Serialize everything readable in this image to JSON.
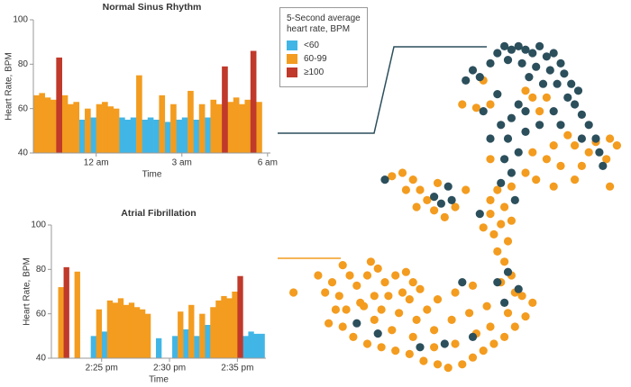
{
  "chart_data": [
    {
      "type": "bar",
      "title": "Normal Sinus Rhythm",
      "x_label": "Time",
      "y_label": "Heart Rate, BPM",
      "legend_title": "5-Second average heart rate, BPM",
      "x": [
        21.9,
        22.1,
        22.3,
        22.5,
        22.7,
        22.9,
        23.1,
        23.3,
        23.5,
        23.7,
        23.9,
        24.1,
        24.3,
        24.5,
        24.7,
        24.9,
        25.1,
        25.3,
        25.5,
        25.7,
        25.9,
        26.1,
        26.3,
        26.5,
        26.7,
        26.9,
        27.1,
        27.3,
        27.5,
        27.7,
        27.9,
        28.1,
        28.3,
        28.5,
        28.7,
        28.9,
        29.1,
        29.3,
        29.5,
        29.7
      ],
      "bar_width": 0.2,
      "series": [
        {
          "name": "<60",
          "color": "#41b6e6",
          "values": [
            null,
            null,
            null,
            null,
            null,
            null,
            null,
            null,
            55,
            null,
            56,
            null,
            null,
            null,
            null,
            56,
            55,
            56,
            null,
            55,
            56,
            55,
            null,
            54,
            null,
            55,
            56,
            null,
            55,
            null,
            56,
            null,
            null,
            null,
            null,
            null,
            null,
            null,
            null,
            null
          ]
        },
        {
          "name": "60-99",
          "color": "#f39c1f",
          "values": [
            66,
            67,
            65,
            64,
            null,
            66,
            62,
            63,
            null,
            60,
            null,
            62,
            63,
            61,
            60,
            null,
            null,
            null,
            75,
            null,
            null,
            null,
            66,
            null,
            62,
            null,
            null,
            68,
            null,
            62,
            null,
            64,
            62,
            null,
            63,
            65,
            62,
            64,
            null,
            63
          ]
        },
        {
          "name": "≥100",
          "color": "#c0392b",
          "values": [
            null,
            null,
            null,
            null,
            83,
            null,
            null,
            null,
            null,
            null,
            null,
            null,
            null,
            null,
            null,
            null,
            null,
            null,
            null,
            null,
            null,
            null,
            null,
            null,
            null,
            null,
            null,
            null,
            null,
            null,
            null,
            null,
            null,
            79,
            null,
            null,
            null,
            null,
            86,
            null
          ]
        }
      ],
      "xlim": [
        21.8,
        30.1
      ],
      "xticks": [
        {
          "value": 24,
          "label": "12 am"
        },
        {
          "value": 27,
          "label": "3 am"
        },
        {
          "value": 30,
          "label": "6 am"
        }
      ],
      "ylim": [
        40,
        100
      ],
      "yticks": [
        40,
        60,
        80,
        100
      ]
    },
    {
      "type": "bar",
      "title": "Atrial Fibrillation",
      "x_label": "Time",
      "y_label": "Heart Rate, BPM",
      "x": [
        21.6,
        22.0,
        22.4,
        22.8,
        23.2,
        23.6,
        24.0,
        24.4,
        24.8,
        25.2,
        25.6,
        26.0,
        26.4,
        26.8,
        27.2,
        27.6,
        28.0,
        28.4,
        28.8,
        29.2,
        29.6,
        30.0,
        30.4,
        30.8,
        31.2,
        31.6,
        32.0,
        32.4,
        32.8,
        33.2,
        33.6,
        34.0,
        34.4,
        34.8,
        35.2,
        35.6,
        36.0,
        36.4,
        36.8
      ],
      "bar_width": 0.4,
      "series": [
        {
          "name": "<60",
          "color": "#41b6e6",
          "values": [
            null,
            null,
            null,
            null,
            null,
            null,
            null,
            50,
            null,
            52,
            null,
            null,
            null,
            null,
            null,
            null,
            null,
            null,
            null,
            49,
            null,
            null,
            50,
            null,
            53,
            null,
            50,
            null,
            55,
            null,
            null,
            null,
            null,
            null,
            null,
            50,
            52,
            51,
            51
          ]
        },
        {
          "name": "60-99",
          "color": "#f39c1f",
          "values": [
            null,
            72,
            null,
            null,
            79,
            null,
            null,
            null,
            62,
            null,
            66,
            65,
            67,
            64,
            65,
            63,
            62,
            60,
            null,
            null,
            null,
            null,
            null,
            61,
            null,
            64,
            null,
            60,
            null,
            63,
            66,
            68,
            67,
            70,
            null,
            null,
            null,
            null,
            null
          ]
        },
        {
          "name": "≥100",
          "color": "#c0392b",
          "values": [
            null,
            null,
            81,
            null,
            null,
            null,
            null,
            null,
            null,
            null,
            null,
            null,
            null,
            null,
            null,
            null,
            null,
            null,
            null,
            null,
            null,
            null,
            null,
            null,
            null,
            null,
            null,
            null,
            null,
            null,
            null,
            null,
            null,
            null,
            77,
            null,
            null,
            null,
            null
          ]
        }
      ],
      "xlim": [
        21.3,
        37.1
      ],
      "xticks": [
        {
          "value": 25,
          "label": "2:25 pm"
        },
        {
          "value": 30,
          "label": "2:30 pm"
        },
        {
          "value": 35,
          "label": "2:35 pm"
        }
      ],
      "ylim": [
        40,
        100
      ],
      "yticks": [
        40,
        60,
        80,
        100
      ]
    },
    {
      "type": "scatter",
      "xlim": [
        0,
        100
      ],
      "ylim": [
        0,
        100
      ],
      "series": [
        {
          "color": "#f39c1f",
          "x": [
            58,
            72,
            76,
            70,
            60,
            56,
            52,
            74,
            82,
            78,
            84,
            88,
            90,
            94,
            96,
            93,
            86,
            80,
            76,
            72,
            70,
            66,
            73,
            78,
            84,
            94,
            60,
            32,
            35,
            38,
            36,
            40,
            42,
            39,
            44,
            47,
            50,
            53,
            45,
            62,
            64,
            60,
            63,
            61,
            65,
            62,
            64,
            66,
            63,
            67,
            60,
            58,
            66,
            18,
            20,
            15,
            13,
            17,
            22,
            25,
            28,
            30,
            33,
            36,
            38,
            40,
            35,
            31,
            27,
            23,
            19,
            16,
            14,
            18,
            21,
            25,
            29,
            33,
            37,
            41,
            45,
            48,
            52,
            55,
            58,
            61,
            64,
            67,
            70,
            72,
            69,
            65,
            60,
            56,
            50,
            44,
            38,
            32,
            27,
            24,
            29,
            34,
            39,
            44,
            49,
            54,
            59,
            45,
            50,
            55,
            42,
            4,
            11,
            26,
            37
          ],
          "y": [
            87,
            82,
            82,
            84,
            80,
            79,
            80,
            78,
            71,
            68,
            68,
            66,
            69,
            70,
            68,
            64,
            62,
            62,
            64,
            66,
            60,
            56,
            58,
            56,
            58,
            56,
            64,
            59,
            60,
            58,
            55,
            55,
            52,
            50,
            49,
            47,
            50,
            55,
            57,
            55,
            50,
            48,
            45,
            42,
            40,
            37,
            34,
            30,
            28,
            25,
            52,
            44,
            46,
            33,
            30,
            28,
            25,
            24,
            27,
            30,
            32,
            28,
            30,
            31,
            28,
            26,
            25,
            24,
            24,
            22,
            20,
            20,
            16,
            15,
            12,
            10,
            9,
            8,
            7,
            5,
            4,
            3,
            4,
            6,
            8,
            10,
            12,
            15,
            18,
            22,
            24,
            19,
            15,
            13,
            10,
            9,
            12,
            14,
            17,
            21,
            20,
            19,
            17,
            14,
            17,
            19,
            21,
            23,
            25,
            27,
            20,
            25,
            30,
            34,
            23
          ]
        },
        {
          "color": "#2c4f5c",
          "x": [
            60,
            62,
            64,
            66,
            68,
            70,
            72,
            74,
            76,
            78,
            80,
            65,
            69,
            73,
            77,
            81,
            83,
            85,
            84,
            86,
            88,
            90,
            91,
            92,
            86,
            82,
            79,
            75,
            71,
            57,
            55,
            53,
            68,
            70,
            66,
            63,
            65,
            68,
            64,
            66,
            63,
            70,
            74,
            78,
            80,
            62,
            58,
            60,
            67,
            48,
            46,
            44,
            30,
            49,
            62,
            68,
            65,
            28,
            40,
            47,
            55,
            22,
            52,
            64,
            57
          ],
          "y": [
            92,
            95,
            97,
            96,
            97,
            96,
            95,
            97,
            94,
            95,
            92,
            93,
            92,
            91,
            90,
            89,
            86,
            84,
            80,
            77,
            74,
            70,
            66,
            62,
            70,
            82,
            86,
            86,
            88,
            88,
            90,
            87,
            80,
            78,
            76,
            74,
            70,
            66,
            64,
            60,
            57,
            72,
            74,
            78,
            74,
            83,
            78,
            70,
            52,
            56,
            51,
            53,
            58,
            52,
            28,
            26,
            31,
            13,
            9,
            10,
            12,
            16,
            28,
            22,
            48
          ]
        }
      ]
    }
  ]
}
